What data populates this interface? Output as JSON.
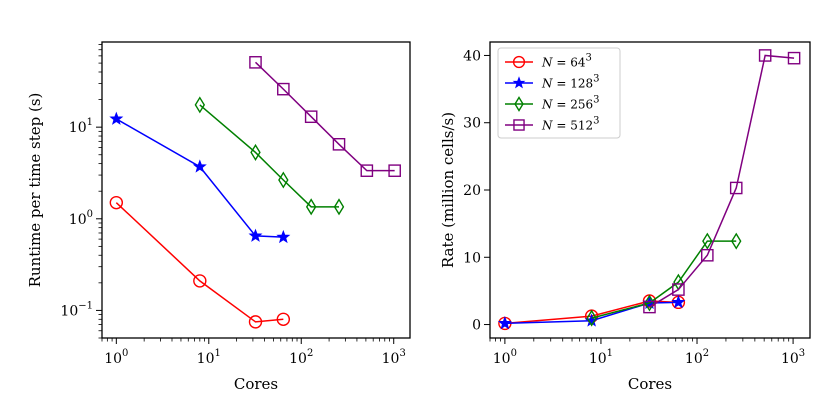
{
  "chart_data": [
    {
      "type": "line",
      "xscale": "log",
      "yscale": "log",
      "xlabel": "Cores",
      "ylabel": "Runtime per time step (s)",
      "xlim": [
        0.7,
        1500
      ],
      "ylim": [
        0.05,
        85
      ],
      "xticks": [
        {
          "base": "10",
          "exp": "0",
          "value": 1
        },
        {
          "base": "10",
          "exp": "1",
          "value": 10
        },
        {
          "base": "10",
          "exp": "2",
          "value": 100
        },
        {
          "base": "10",
          "exp": "3",
          "value": 1000
        }
      ],
      "yticks": [
        {
          "base": "10",
          "exp": "−1",
          "value": 0.1
        },
        {
          "base": "10",
          "exp": "0",
          "value": 1
        },
        {
          "base": "10",
          "exp": "1",
          "value": 10
        }
      ],
      "series": [
        {
          "name": "N = 64^3",
          "color": "#ff0000",
          "marker": "circle",
          "x": [
            1,
            8,
            32,
            64
          ],
          "y": [
            1.5,
            0.21,
            0.075,
            0.08
          ]
        },
        {
          "name": "N = 128^3",
          "color": "#0000ff",
          "marker": "star",
          "x": [
            1,
            8,
            32,
            64
          ],
          "y": [
            12.3,
            3.7,
            0.65,
            0.63
          ]
        },
        {
          "name": "N = 256^3",
          "color": "#008000",
          "marker": "thin_diamond",
          "x": [
            8,
            32,
            64,
            128,
            256
          ],
          "y": [
            17.5,
            5.3,
            2.65,
            1.35,
            1.35
          ]
        },
        {
          "name": "N = 512^3",
          "color": "#800080",
          "marker": "square",
          "x": [
            32,
            64,
            128,
            256,
            512,
            1024
          ],
          "y": [
            51,
            26,
            13,
            6.5,
            3.35,
            3.35
          ]
        }
      ]
    },
    {
      "type": "line",
      "xscale": "log",
      "yscale": "linear",
      "xlabel": "Cores",
      "ylabel": "Rate (million cells/s)",
      "xlim": [
        0.7,
        1500
      ],
      "ylim": [
        -2,
        42
      ],
      "xticks": [
        {
          "base": "10",
          "exp": "0",
          "value": 1
        },
        {
          "base": "10",
          "exp": "1",
          "value": 10
        },
        {
          "base": "10",
          "exp": "2",
          "value": 100
        },
        {
          "base": "10",
          "exp": "3",
          "value": 1000
        }
      ],
      "yticks": [
        {
          "label": "0",
          "value": 0
        },
        {
          "label": "10",
          "value": 10
        },
        {
          "label": "20",
          "value": 20
        },
        {
          "label": "30",
          "value": 30
        },
        {
          "label": "40",
          "value": 40
        }
      ],
      "legend": {
        "location": "upper-left",
        "entries": [
          {
            "prefix": "N = ",
            "base": "64",
            "exp": "3"
          },
          {
            "prefix": "N = ",
            "base": "128",
            "exp": "3"
          },
          {
            "prefix": "N = ",
            "base": "256",
            "exp": "3"
          },
          {
            "prefix": "N = ",
            "base": "512",
            "exp": "3"
          }
        ]
      },
      "series": [
        {
          "name": "N = 64^3",
          "color": "#ff0000",
          "marker": "circle",
          "x": [
            1,
            8,
            32,
            64
          ],
          "y": [
            0.17,
            1.25,
            3.5,
            3.3
          ]
        },
        {
          "name": "N = 128^3",
          "color": "#0000ff",
          "marker": "star",
          "x": [
            1,
            8,
            32,
            64
          ],
          "y": [
            0.17,
            0.57,
            3.2,
            3.3
          ]
        },
        {
          "name": "N = 256^3",
          "color": "#008000",
          "marker": "thin_diamond",
          "x": [
            8,
            32,
            64,
            128,
            256
          ],
          "y": [
            0.96,
            3.2,
            6.3,
            12.4,
            12.4
          ]
        },
        {
          "name": "N = 512^3",
          "color": "#800080",
          "marker": "square",
          "x": [
            32,
            64,
            128,
            256,
            512,
            1024
          ],
          "y": [
            2.6,
            5.2,
            10.3,
            20.3,
            40,
            39.6
          ]
        }
      ]
    }
  ]
}
